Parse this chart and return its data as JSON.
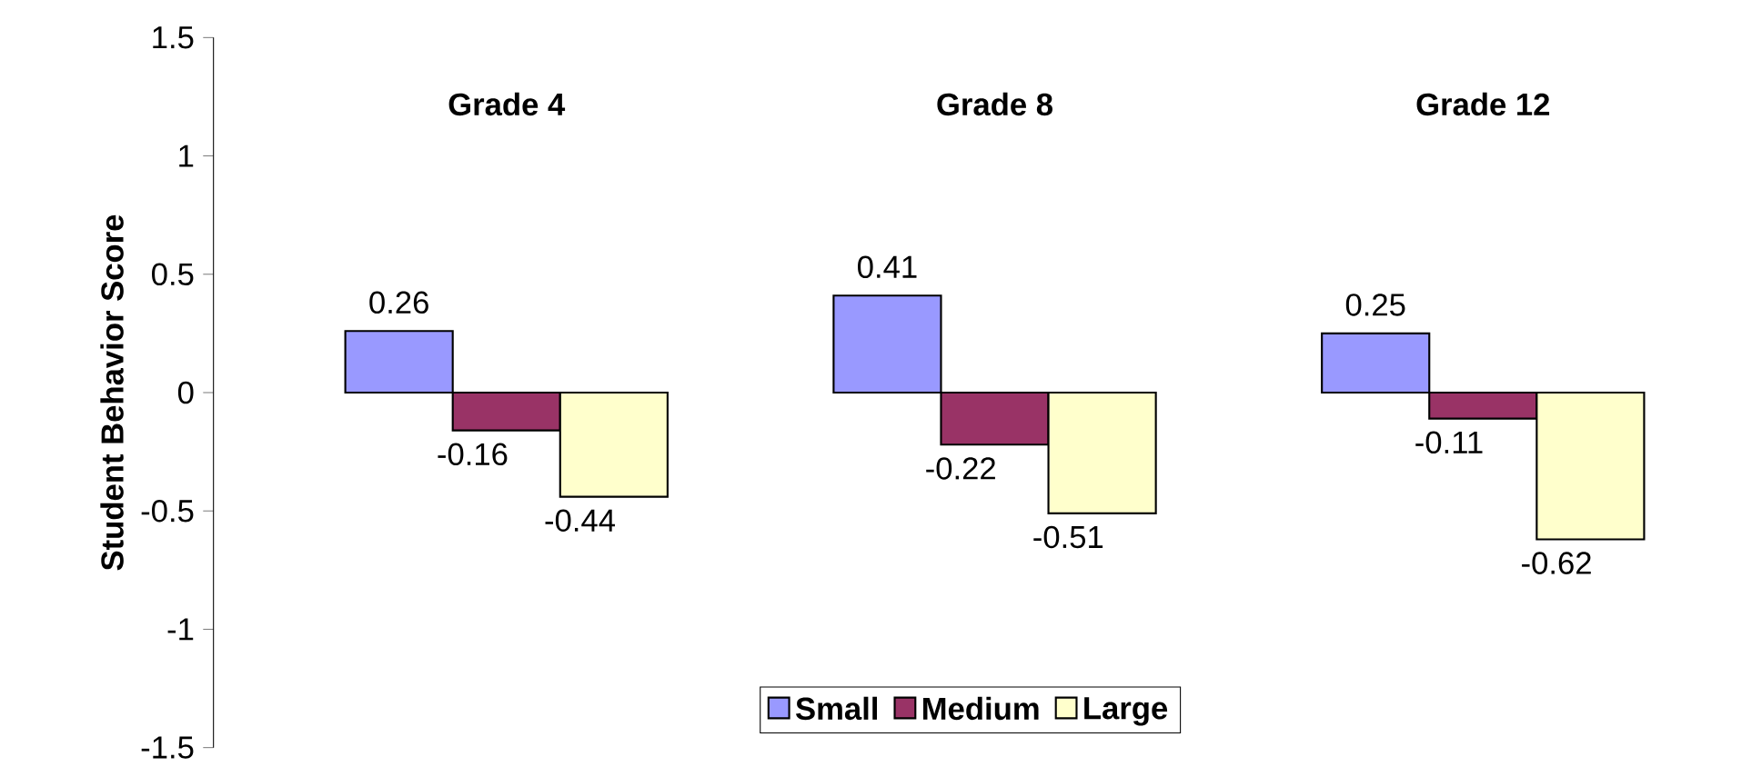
{
  "chart_data": {
    "type": "bar",
    "ylabel": "Student Behavior Score",
    "categories": [
      "Grade 4",
      "Grade 8",
      "Grade 12"
    ],
    "series": [
      {
        "name": "Small",
        "color": "#9999ff",
        "values": [
          0.26,
          0.41,
          0.25
        ]
      },
      {
        "name": "Medium",
        "color": "#993366",
        "values": [
          -0.16,
          -0.22,
          -0.11
        ]
      },
      {
        "name": "Large",
        "color": "#ffffcc",
        "values": [
          -0.44,
          -0.51,
          -0.62
        ]
      }
    ],
    "ylim": [
      -1.5,
      1.5
    ],
    "yticks": [
      -1.5,
      -1,
      -0.5,
      0,
      0.5,
      1,
      1.5
    ],
    "data_labels": true,
    "legend": "bottom",
    "grid": false
  }
}
